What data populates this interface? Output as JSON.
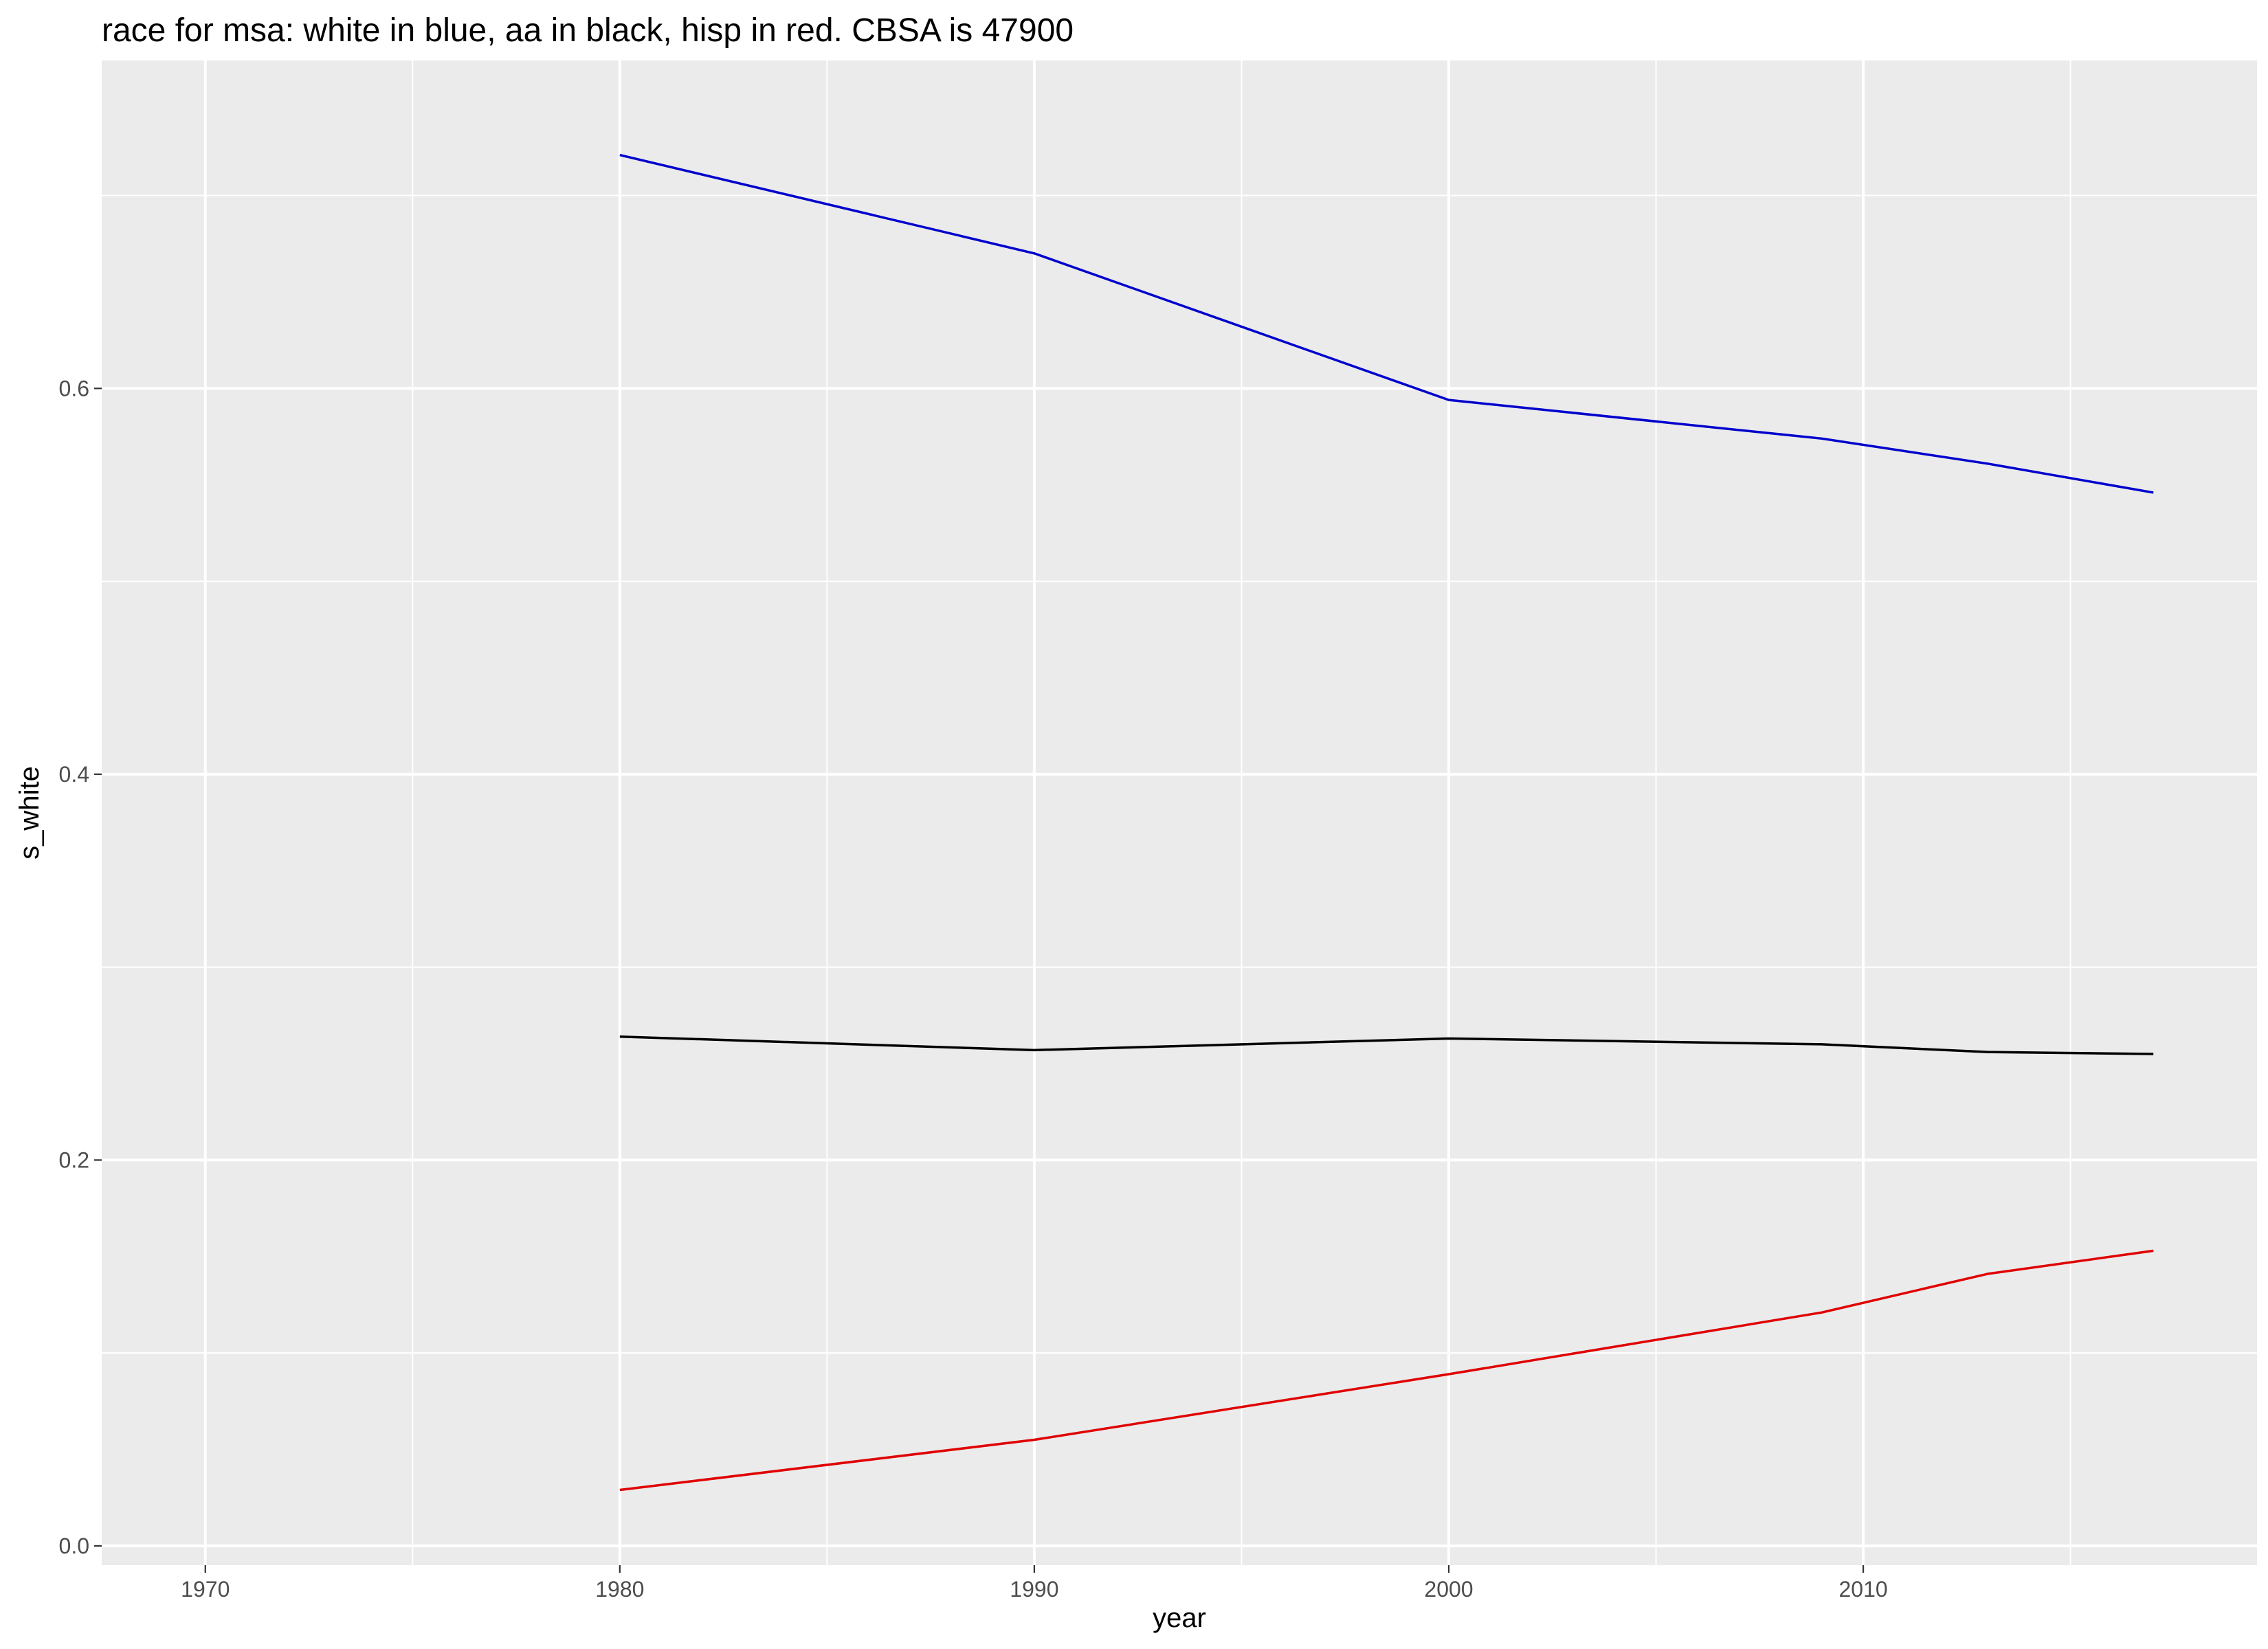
{
  "chart_data": {
    "type": "line",
    "title": "race for msa: white in blue, aa in black, hisp in red. CBSA is 47900",
    "xlabel": "year",
    "ylabel": "s_white",
    "xlim": [
      1967.5,
      2019.5
    ],
    "ylim": [
      -0.01,
      0.77
    ],
    "x_ticks": [
      1970,
      1980,
      1990,
      2000,
      2010
    ],
    "x_tick_labels": [
      "1970",
      "1980",
      "1990",
      "2000",
      "2010"
    ],
    "x_minor_ticks": [
      1975,
      1985,
      1995,
      2005,
      2015
    ],
    "y_ticks": [
      0.0,
      0.2,
      0.4,
      0.6
    ],
    "y_tick_labels": [
      "0.0",
      "0.2",
      "0.4",
      "0.6"
    ],
    "y_minor_ticks": [
      0.1,
      0.3,
      0.5,
      0.7
    ],
    "grid": true,
    "background": "#ebebeb",
    "series": [
      {
        "color": "#0000cd",
        "x": [
          1980,
          1990,
          2000,
          2009,
          2013,
          2017
        ],
        "y": [
          0.721,
          0.67,
          0.594,
          0.574,
          0.561,
          0.546
        ]
      },
      {
        "color": "#000000",
        "x": [
          1980,
          1990,
          2000,
          2009,
          2013,
          2017
        ],
        "y": [
          0.264,
          0.257,
          0.263,
          0.26,
          0.256,
          0.255
        ]
      },
      {
        "color": "#e00000",
        "x": [
          1980,
          1990,
          2000,
          2009,
          2013,
          2017
        ],
        "y": [
          0.029,
          0.055,
          0.089,
          0.121,
          0.141,
          0.153
        ]
      }
    ]
  }
}
